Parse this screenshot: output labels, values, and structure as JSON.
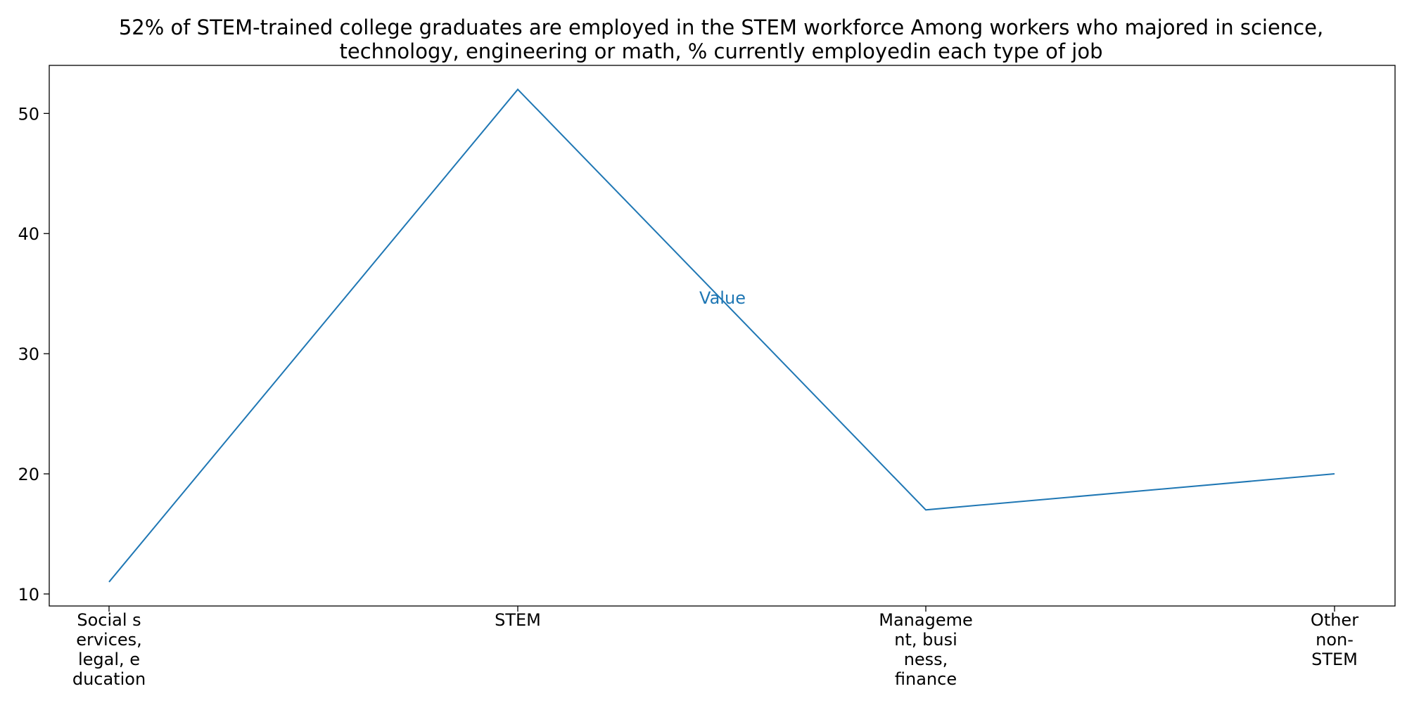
{
  "chart_data": {
    "type": "line",
    "title": "52% of STEM-trained college graduates are employed in the STEM workforce Among workers who majored in science, technology, engineering or math, % currently employedin each type of job",
    "title_lines": [
      "52% of STEM-trained college graduates are employed in the STEM workforce Among workers who majored in science,",
      "technology, engineering or math, % currently employedin each type of job"
    ],
    "xlabel": "",
    "ylabel": "",
    "categories": [
      "Social s ervices, legal, e ducation",
      "STEM",
      "Manageme nt, busi ness, finance",
      "Other non- STEM"
    ],
    "category_lines": [
      [
        "Social s",
        "ervices,",
        "legal, e",
        "ducation"
      ],
      [
        "STEM"
      ],
      [
        "Manageme",
        "nt, busi",
        "ness,",
        "finance"
      ],
      [
        "Other",
        "non-",
        "STEM"
      ]
    ],
    "series": [
      {
        "name": "Value",
        "values": [
          11,
          52,
          17,
          20
        ],
        "color": "#1f77b4"
      }
    ],
    "ylim": [
      9,
      54
    ],
    "yticks": [
      10,
      20,
      30,
      40,
      50
    ],
    "grid": false,
    "legend": "none"
  }
}
